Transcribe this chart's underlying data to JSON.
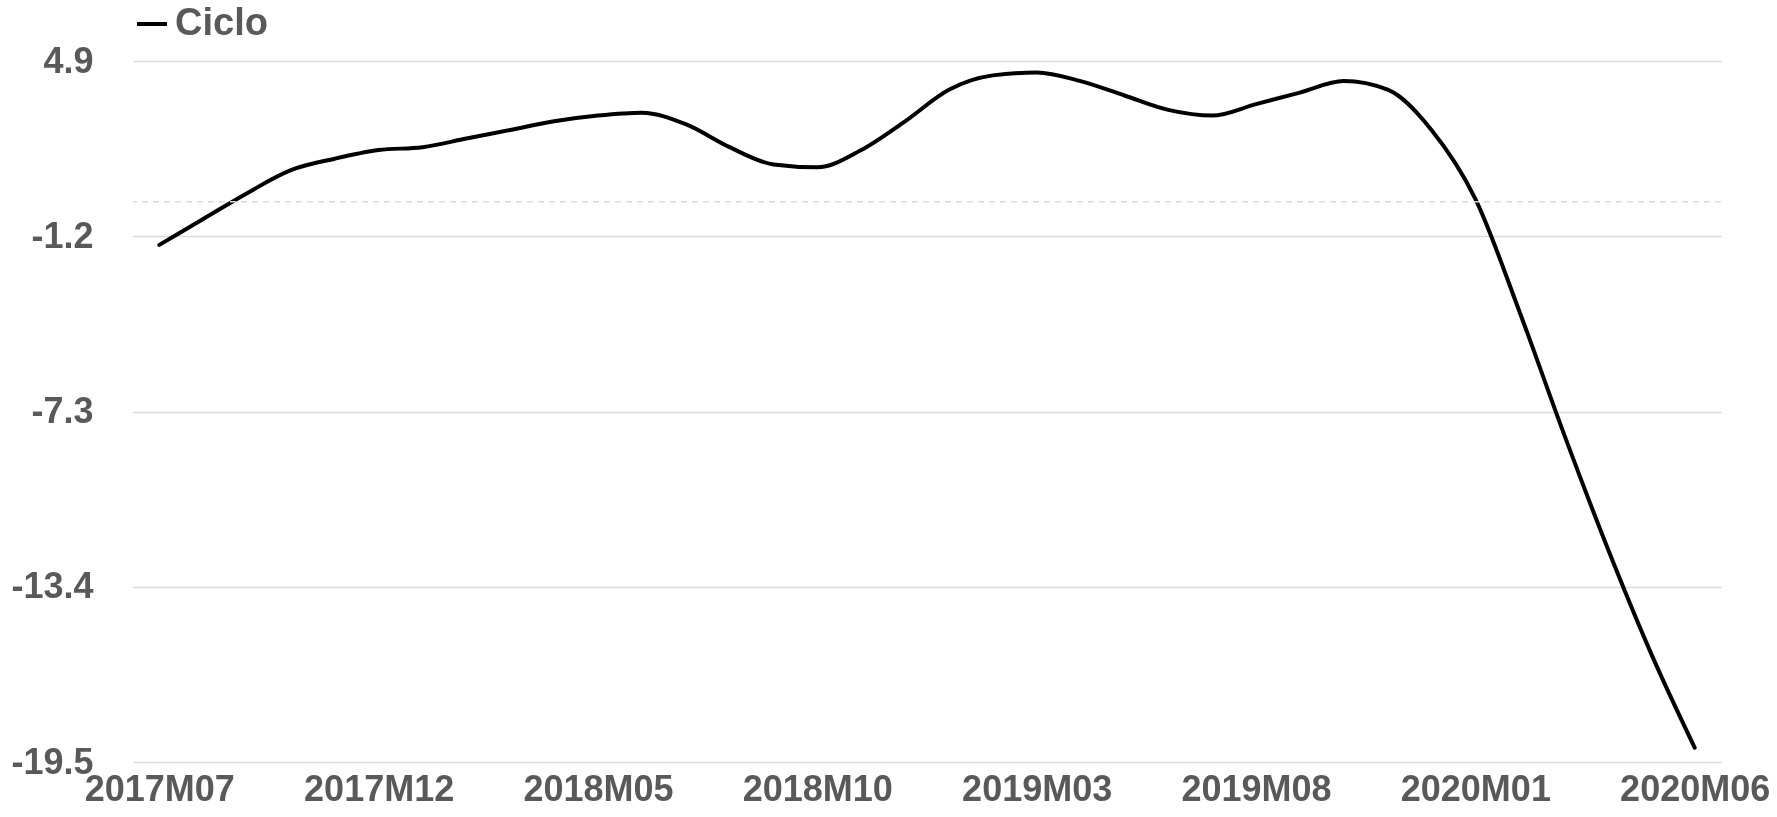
{
  "chart_data": {
    "type": "line",
    "categories": [
      "2017M07",
      null,
      null,
      null,
      null,
      "2017M12",
      null,
      null,
      null,
      null,
      "2018M05",
      null,
      null,
      null,
      null,
      "2018M10",
      null,
      null,
      null,
      null,
      "2019M03",
      null,
      null,
      null,
      null,
      "2019M08",
      null,
      null,
      null,
      null,
      "2020M01",
      null,
      null,
      null,
      null,
      "2020M06"
    ],
    "series": [
      {
        "name": "Ciclo",
        "color": "#000000",
        "values": [
          -1.5,
          -0.6,
          0.3,
          1.1,
          1.5,
          1.8,
          1.9,
          2.2,
          2.5,
          2.8,
          3.0,
          3.1,
          2.7,
          1.9,
          1.3,
          1.2,
          1.8,
          2.8,
          3.9,
          4.4,
          4.5,
          4.2,
          3.7,
          3.2,
          3.0,
          3.4,
          3.8,
          4.2,
          3.9,
          2.5,
          0.1,
          -3.8,
          -8.0,
          -12.0,
          -15.7,
          -19.0
        ]
      }
    ],
    "ylim": [
      -19.5,
      4.9
    ],
    "yticks": [
      -19.5,
      -13.4,
      -7.3,
      -1.2,
      4.9
    ],
    "grid": "y",
    "legend": "top",
    "line_style": "solid",
    "marker": "none",
    "ref_lines": [
      {
        "axis": "y",
        "value": 0,
        "color": "#d9d9d9",
        "line_style": "dashed"
      }
    ]
  }
}
